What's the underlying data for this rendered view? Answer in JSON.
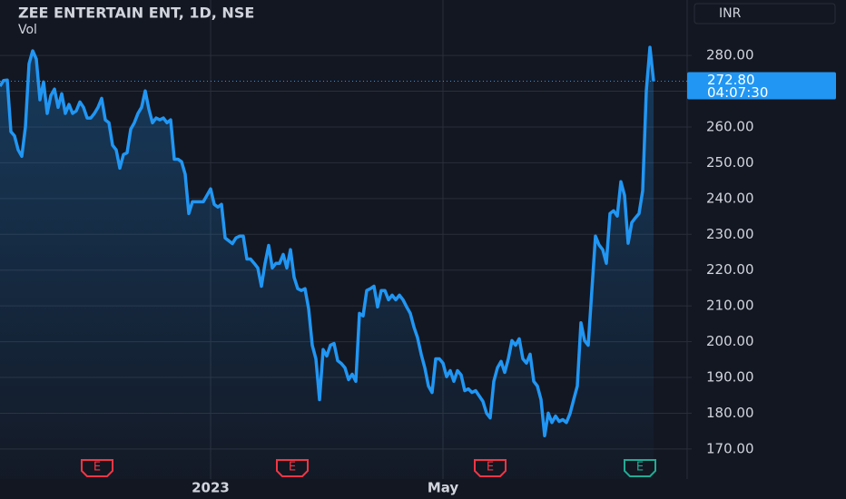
{
  "chart_data": {
    "type": "area-line",
    "title": "ZEE ENTERTAIN ENT, 1D, NSE",
    "subtitle": "Vol",
    "currency": "INR",
    "color": "#2196f3",
    "categories": [
      null,
      null,
      null,
      null,
      null,
      null,
      null,
      null,
      null,
      null,
      null,
      null,
      null,
      null,
      null,
      null,
      null,
      null,
      null,
      null,
      null,
      null,
      null,
      null,
      null,
      null,
      null,
      null,
      null,
      null,
      null,
      null,
      null,
      null,
      null,
      null,
      null,
      null,
      null,
      null,
      null,
      null,
      null,
      null,
      null,
      null,
      null,
      null,
      null,
      null,
      null,
      null,
      null,
      null,
      null,
      null,
      null,
      null,
      "2023",
      null,
      null,
      null,
      null,
      null,
      null,
      null,
      null,
      null,
      null,
      null,
      null,
      null,
      null,
      null,
      null,
      null,
      null,
      null,
      null,
      null,
      null,
      null,
      null,
      null,
      null,
      null,
      null,
      null,
      null,
      null,
      null,
      null,
      null,
      null,
      null,
      null,
      null,
      null,
      null,
      null,
      null,
      null,
      null,
      null,
      null,
      null,
      null,
      null,
      null,
      null,
      null,
      null,
      null,
      null,
      null,
      null,
      null,
      null,
      null,
      null,
      null,
      null,
      "May",
      null,
      null,
      null,
      null,
      null,
      null,
      null,
      null,
      null,
      null,
      null,
      null,
      null,
      null,
      null,
      null,
      null,
      null,
      null,
      null,
      null,
      null,
      null,
      null,
      null,
      null,
      null,
      null,
      null,
      null,
      null,
      null,
      null,
      null,
      null,
      null,
      null,
      null,
      null,
      null,
      null,
      null,
      null,
      null,
      null,
      null,
      null,
      null,
      null,
      null,
      null,
      null,
      null,
      null,
      null,
      null,
      null,
      null
    ],
    "values": [
      271.4,
      273,
      273.1,
      258.7,
      257.5,
      253.6,
      251.8,
      260,
      277.7,
      281.3,
      279,
      267.6,
      272.6,
      263.8,
      268.8,
      270.6,
      265.5,
      269.3,
      263.8,
      266.3,
      263.8,
      264.5,
      267,
      265.5,
      262.5,
      262.5,
      263.8,
      265.5,
      268,
      262,
      261.2,
      254.9,
      253.6,
      248.5,
      252.3,
      252.8,
      259.4,
      261.2,
      263.8,
      265.5,
      270.1,
      265,
      261.2,
      262.5,
      262,
      262.5,
      261.2,
      262,
      251,
      251,
      250.3,
      246.8,
      235.8,
      239.1,
      239.1,
      239.1,
      239.1,
      240.9,
      242.7,
      238.4,
      237.6,
      238.4,
      229,
      228.2,
      227.4,
      229,
      229.5,
      229.5,
      223.1,
      223.1,
      221.9,
      220.6,
      215.5,
      221.9,
      226.9,
      220.6,
      221.9,
      221.9,
      224.4,
      220.6,
      225.7,
      218,
      214.8,
      214.3,
      214.8,
      209.2,
      199,
      195.2,
      183.8,
      197.8,
      196,
      199,
      199.5,
      194.7,
      193.9,
      192.7,
      189.4,
      190.9,
      188.9,
      207.9,
      207.2,
      214.3,
      214.8,
      215.5,
      209.7,
      214.3,
      214.3,
      211.7,
      213,
      211.7,
      213,
      211.7,
      209.7,
      207.9,
      204.1,
      201.1,
      196.5,
      192.7,
      187.6,
      185.8,
      195.2,
      195.2,
      194,
      190.2,
      191.9,
      188.9,
      191.9,
      190.7,
      186.3,
      186.8,
      185.8,
      186.3,
      184.8,
      183.3,
      180,
      178.7,
      188.9,
      192.7,
      194.5,
      191.4,
      195.2,
      200.3,
      199,
      200.8,
      195.2,
      194,
      196.5,
      188.9,
      187.6,
      183.8,
      173.7,
      180,
      177.4,
      179.2,
      177.7,
      178.2,
      177.4,
      179.9,
      183.8,
      187.6,
      205.3,
      200.3,
      199,
      214.3,
      229.5,
      227,
      225.7,
      221.9,
      235.8,
      236.6,
      235.1,
      244.7,
      240.9,
      227.5,
      233.3,
      234.6,
      235.8,
      242.2,
      270.1,
      282.3,
      272.8
    ],
    "ylim": [
      161.6,
      295.5
    ],
    "yticks": [
      {
        "value": 170,
        "label": "170.00"
      },
      {
        "value": 180,
        "label": "180.00"
      },
      {
        "value": 190,
        "label": "190.00"
      },
      {
        "value": 200,
        "label": "200.00"
      },
      {
        "value": 210,
        "label": "210.00"
      },
      {
        "value": 220,
        "label": "220.00"
      },
      {
        "value": 230,
        "label": "230.00"
      },
      {
        "value": 240,
        "label": "240.00"
      },
      {
        "value": 250,
        "label": "250.00"
      },
      {
        "value": 260,
        "label": "260.00"
      },
      {
        "value": 270,
        "label": "270.00"
      },
      {
        "value": 280,
        "label": "280.00"
      }
    ],
    "last_price": {
      "value": 272.8,
      "label": "272.80",
      "countdown": "04:07:30"
    },
    "grid": true,
    "events": [
      {
        "label": "E",
        "color": "#f23645"
      },
      {
        "label": "E",
        "color": "#f23645"
      },
      {
        "label": "E",
        "color": "#f23645"
      },
      {
        "label": "E",
        "color": "#22ab94"
      }
    ]
  }
}
